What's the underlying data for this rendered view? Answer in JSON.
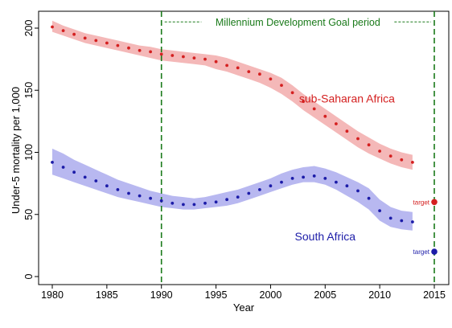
{
  "chart_data": {
    "type": "scatter",
    "title": "",
    "xlabel": "Year",
    "ylabel": "Under-5 mortality per 1,000",
    "xlim": [
      1980,
      2015
    ],
    "ylim": [
      0,
      200
    ],
    "xticks": [
      1980,
      1985,
      1990,
      1995,
      2000,
      2005,
      2010,
      2015
    ],
    "yticks": [
      0,
      50,
      100,
      150,
      200
    ],
    "grid": false,
    "legend": "none",
    "reference_lines": [
      {
        "x": 1990,
        "style": "dashed",
        "color": "#1a7a1a"
      },
      {
        "x": 2015,
        "style": "dashed",
        "color": "#1a7a1a"
      }
    ],
    "period_annotation": {
      "label": "Millennium Development Goal period",
      "x_start": 1990,
      "x_end": 2015,
      "y": 205,
      "color": "#1a7a1a"
    },
    "series": [
      {
        "name": "sub-Saharan Africa",
        "color": "#d42020",
        "band_color": "#f4b8b8",
        "x": [
          1980,
          1981,
          1982,
          1983,
          1984,
          1985,
          1986,
          1987,
          1988,
          1989,
          1990,
          1991,
          1992,
          1993,
          1994,
          1995,
          1996,
          1997,
          1998,
          1999,
          2000,
          2001,
          2002,
          2003,
          2004,
          2005,
          2006,
          2007,
          2008,
          2009,
          2010,
          2011,
          2012,
          2013
        ],
        "values": [
          201,
          198,
          195,
          192,
          190,
          188,
          186,
          184,
          182,
          181,
          179,
          178,
          177,
          176,
          175,
          173,
          170,
          168,
          165,
          163,
          159,
          154,
          148,
          141,
          135,
          129,
          123,
          117,
          111,
          106,
          101,
          97,
          94,
          92
        ],
        "lower": [
          197,
          194,
          191,
          188,
          186,
          184,
          182,
          180,
          178,
          176,
          174,
          173,
          172,
          171,
          170,
          167,
          165,
          162,
          159,
          156,
          152,
          147,
          141,
          134,
          128,
          122,
          116,
          110,
          104,
          99,
          95,
          91,
          88,
          86
        ],
        "upper": [
          206,
          202,
          199,
          196,
          194,
          192,
          190,
          188,
          186,
          185,
          183,
          182,
          181,
          180,
          179,
          178,
          176,
          173,
          170,
          167,
          164,
          160,
          154,
          147,
          141,
          135,
          129,
          123,
          117,
          112,
          107,
          103,
          100,
          98
        ],
        "target": 60,
        "target_label": "target"
      },
      {
        "name": "South Africa",
        "color": "#1c1ca8",
        "band_color": "#b8b8f0",
        "x": [
          1980,
          1981,
          1982,
          1983,
          1984,
          1985,
          1986,
          1987,
          1988,
          1989,
          1990,
          1991,
          1992,
          1993,
          1994,
          1995,
          1996,
          1997,
          1998,
          1999,
          2000,
          2001,
          2002,
          2003,
          2004,
          2005,
          2006,
          2007,
          2008,
          2009,
          2010,
          2011,
          2012,
          2013
        ],
        "values": [
          92,
          88,
          84,
          80,
          77,
          73,
          70,
          67,
          65,
          63,
          61,
          59,
          58,
          58,
          59,
          60,
          62,
          64,
          67,
          70,
          73,
          76,
          79,
          80,
          81,
          79,
          76,
          73,
          69,
          63,
          53,
          47,
          45,
          44
        ],
        "lower": [
          82,
          79,
          76,
          73,
          70,
          67,
          64,
          62,
          60,
          58,
          56,
          55,
          54,
          54,
          55,
          56,
          57,
          59,
          62,
          65,
          68,
          71,
          74,
          76,
          76,
          74,
          70,
          65,
          60,
          54,
          45,
          40,
          38,
          37
        ],
        "upper": [
          103,
          99,
          94,
          90,
          86,
          82,
          78,
          75,
          72,
          69,
          67,
          65,
          64,
          63,
          64,
          66,
          68,
          70,
          73,
          76,
          79,
          83,
          86,
          88,
          89,
          87,
          84,
          80,
          76,
          71,
          62,
          56,
          53,
          52
        ],
        "target": 20,
        "target_label": "target"
      }
    ]
  }
}
